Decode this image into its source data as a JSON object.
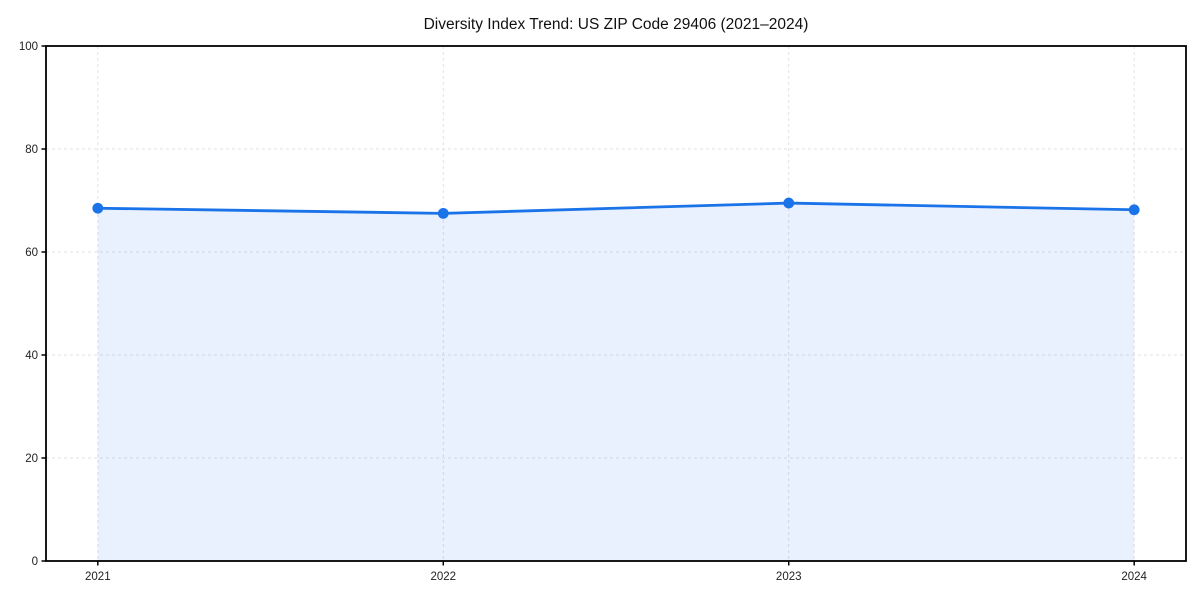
{
  "chart_data": {
    "type": "area",
    "title": "Diversity Index Trend: US ZIP Code 29406 (2021–2024)",
    "x": [
      2021,
      2022,
      2023,
      2024
    ],
    "x_labels": [
      "2021",
      "2022",
      "2023",
      "2024"
    ],
    "series": [
      {
        "name": "Diversity Index",
        "values": [
          68.5,
          67.5,
          69.5,
          68.2
        ]
      }
    ],
    "xlabel": "",
    "ylabel": "",
    "xlim": [
      2020.85,
      2024.15
    ],
    "ylim": [
      0,
      100
    ],
    "yticks": [
      0,
      20,
      40,
      60,
      80,
      100
    ],
    "grid": "dashed",
    "legend": "none",
    "colors": {
      "line": "#1a73e8",
      "marker": "#1a73e8",
      "fill": "rgba(26,115,232,0.10)",
      "grid": "#e2e2e2",
      "spine": "#000000",
      "tick_label": "#222222",
      "title": "#111111",
      "background": "#ffffff"
    }
  }
}
